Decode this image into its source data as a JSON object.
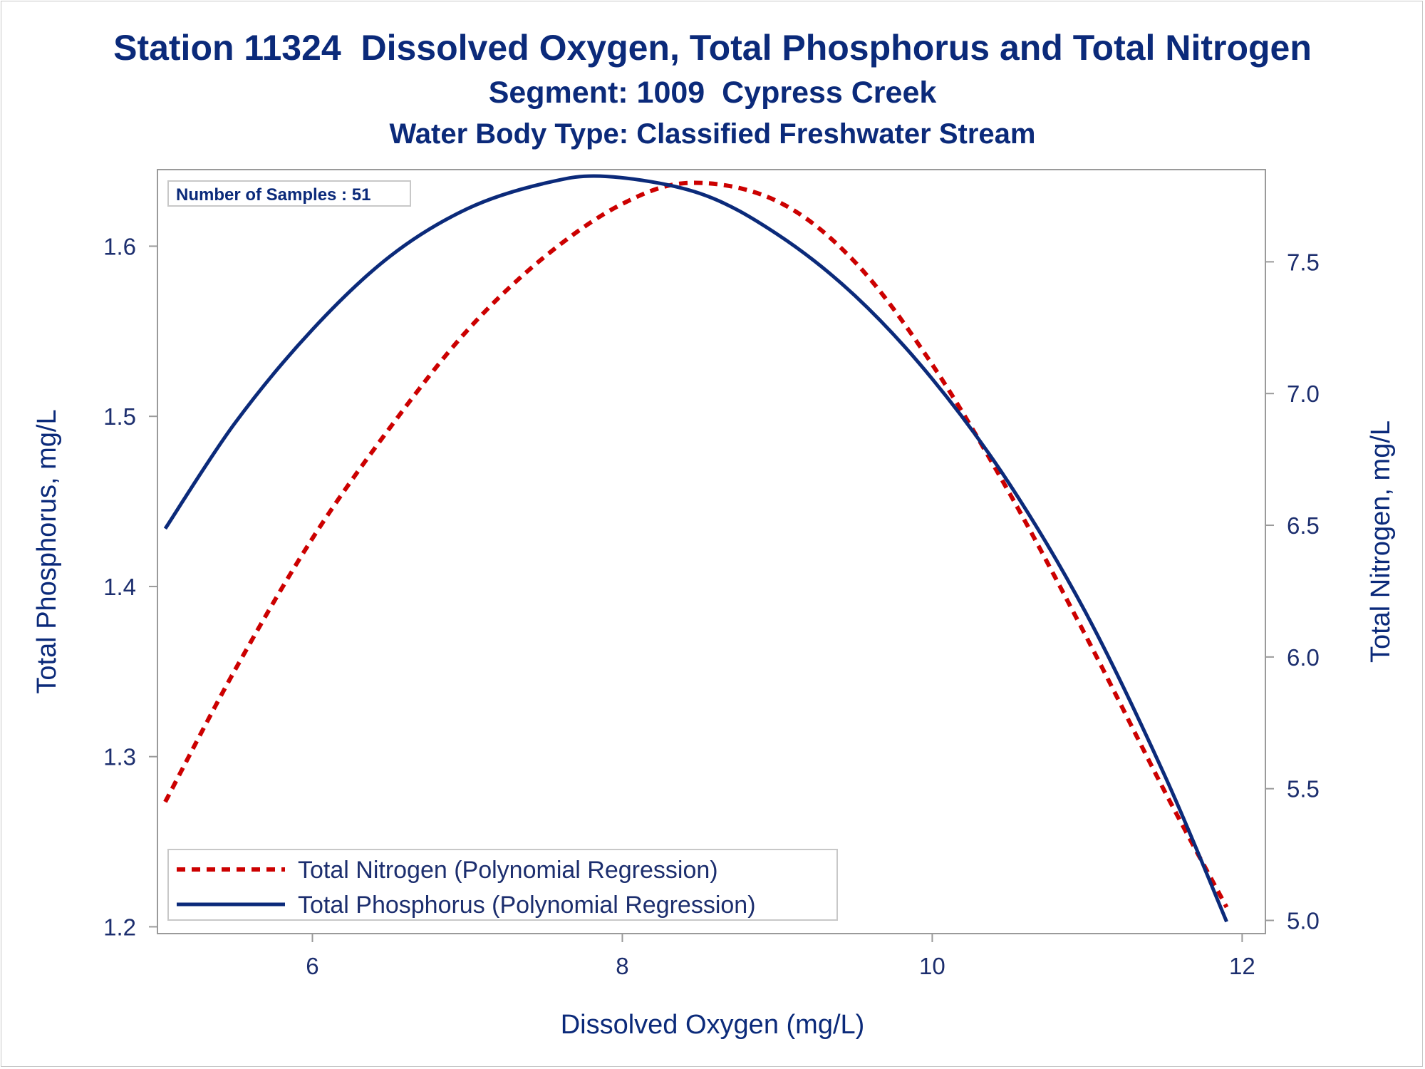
{
  "chart_data": {
    "type": "line",
    "title": "Station 11324  Dissolved Oxygen, Total Phosphorus and Total Nitrogen",
    "subtitle": "Segment: 1009  Cypress Creek",
    "subtitle2": "Water Body Type: Classified Freshwater Stream",
    "xlabel": "Dissolved Oxygen (mg/L)",
    "ylabel": "Total Phosphorus, mg/L",
    "y2label": "Total Nitrogen, mg/L",
    "xlim": [
      5.0,
      12.15
    ],
    "ylim": [
      1.196,
      1.645
    ],
    "y2lim": [
      4.95,
      7.85
    ],
    "x_ticks": [
      "6",
      "8",
      "10",
      "12"
    ],
    "y_ticks": [
      "1.2",
      "1.3",
      "1.4",
      "1.5",
      "1.6"
    ],
    "y2_ticks": [
      "5.0",
      "5.5",
      "6.0",
      "6.5",
      "7.0",
      "7.5"
    ],
    "inset": "Number of Samples : 51",
    "legend_position": "bottom-left",
    "grid": false,
    "series": [
      {
        "name": "Total Nitrogen (Polynomial Regression)",
        "axis": "y2",
        "color": "#cc0000",
        "style": "dashed",
        "x": [
          5.05,
          5.5,
          6.0,
          6.5,
          7.0,
          7.5,
          8.0,
          8.45,
          9.0,
          9.5,
          10.0,
          10.5,
          11.0,
          11.5,
          11.9
        ],
        "y": [
          5.45,
          5.95,
          6.45,
          6.87,
          7.24,
          7.52,
          7.72,
          7.8,
          7.73,
          7.5,
          7.11,
          6.62,
          6.07,
          5.49,
          5.05
        ]
      },
      {
        "name": "Total Phosphorus (Polynomial Regression)",
        "axis": "y",
        "color": "#0b2a7a",
        "style": "solid",
        "x": [
          5.05,
          5.5,
          6.0,
          6.5,
          7.0,
          7.5,
          7.9,
          8.5,
          9.0,
          9.5,
          10.0,
          10.5,
          11.0,
          11.5,
          11.9
        ],
        "y": [
          1.434,
          1.496,
          1.551,
          1.594,
          1.622,
          1.637,
          1.641,
          1.631,
          1.607,
          1.571,
          1.522,
          1.46,
          1.383,
          1.289,
          1.203
        ]
      }
    ]
  }
}
